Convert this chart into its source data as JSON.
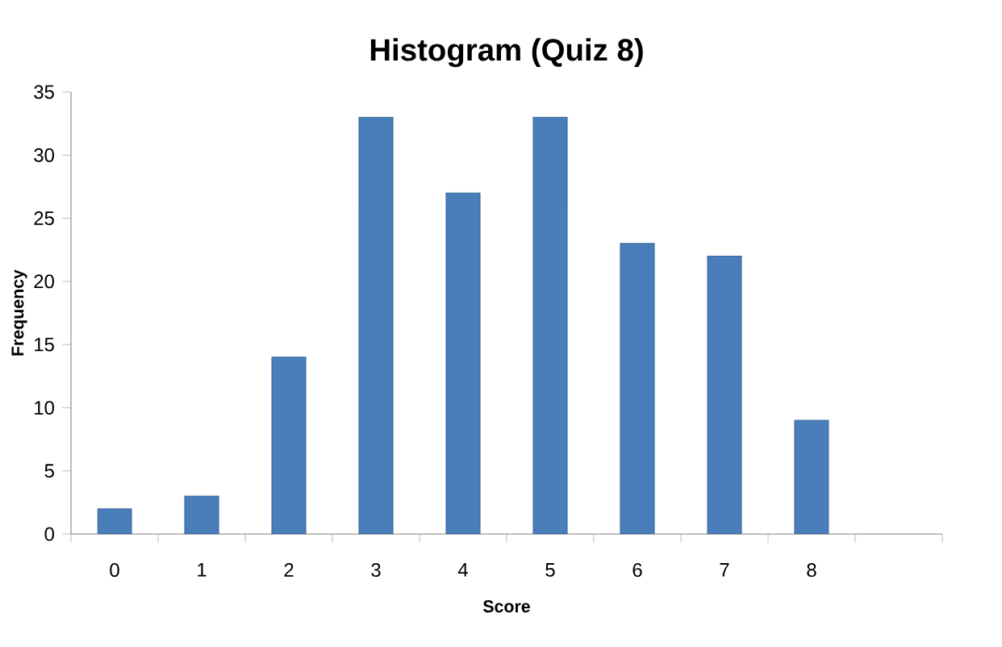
{
  "chart_data": {
    "type": "bar",
    "title": "Histogram (Quiz 8)",
    "xlabel": "Score",
    "ylabel": "Frequency",
    "categories": [
      "0",
      "1",
      "2",
      "3",
      "4",
      "5",
      "6",
      "7",
      "8",
      null
    ],
    "values": [
      2,
      3,
      14,
      33,
      27,
      33,
      23,
      22,
      9,
      null
    ],
    "color": "#4a7ebb",
    "ylim": [
      0,
      35
    ],
    "yticks": [
      0,
      5,
      10,
      15,
      20,
      25,
      30,
      35
    ],
    "grid": false
  }
}
